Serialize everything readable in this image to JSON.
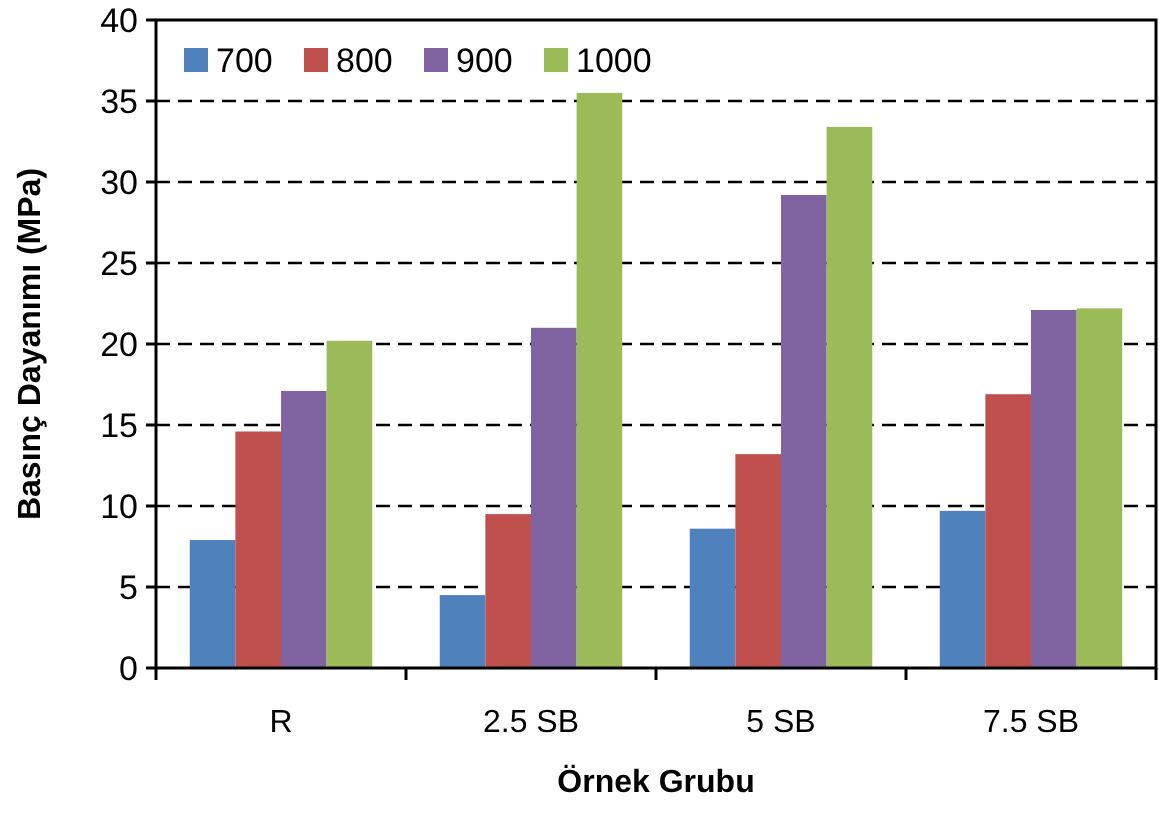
{
  "chart_data": {
    "type": "bar",
    "xlabel": "Örnek Grubu",
    "ylabel": "Basınç Dayanımı (MPa)",
    "categories": [
      "R",
      "2.5 SB",
      "5 SB",
      "7.5 SB"
    ],
    "series": [
      {
        "name": "700",
        "color": "#4f81bd",
        "values": [
          7.9,
          4.5,
          8.6,
          9.7
        ]
      },
      {
        "name": "800",
        "color": "#c0504d",
        "values": [
          14.6,
          9.5,
          13.2,
          16.9
        ]
      },
      {
        "name": "900",
        "color": "#8064a2",
        "values": [
          17.1,
          21.0,
          29.2,
          22.1
        ]
      },
      {
        "name": "1000",
        "color": "#9bbb59",
        "values": [
          20.2,
          35.5,
          33.4,
          22.2
        ]
      }
    ],
    "ylim": [
      0,
      40
    ],
    "yticks": [
      0,
      5,
      10,
      15,
      20,
      25,
      30,
      35,
      40
    ],
    "grid": "y",
    "legend": "top left"
  }
}
